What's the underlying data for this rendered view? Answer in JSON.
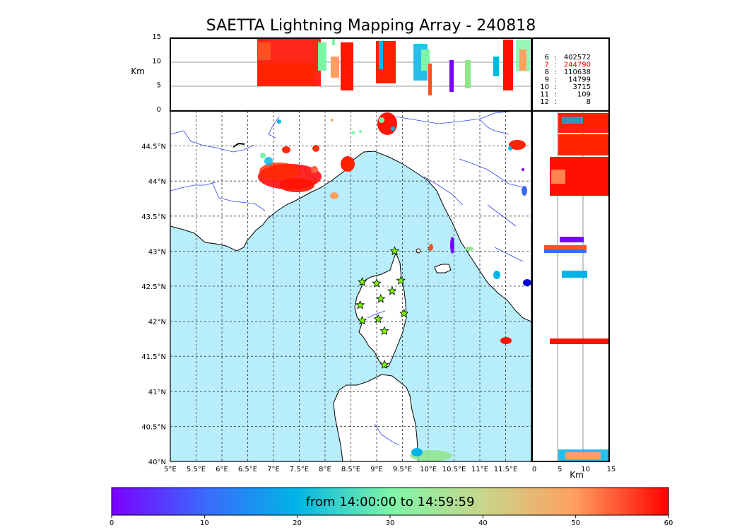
{
  "title": "SAETTA Lightning Mapping Array - 240818",
  "colorbar": {
    "label": "from 14:00:00 to 14:59:59",
    "ticks": [
      "0",
      "10",
      "20",
      "30",
      "40",
      "50",
      "60"
    ],
    "range": [
      0,
      60
    ],
    "colors": [
      "#7a00ff",
      "#3a6bfd",
      "#00b4e6",
      "#7df5a8",
      "#c8d58a",
      "#ffa060",
      "#ff0000"
    ]
  },
  "map": {
    "lon_ticks": [
      "5°E",
      "5.5°E",
      "6°E",
      "6.5°E",
      "7°E",
      "7.5°E",
      "8°E",
      "8.5°E",
      "9°E",
      "9.5°E",
      "10°E",
      "10.5°E",
      "11°E",
      "11.5°E"
    ],
    "lat_ticks": [
      "40°N",
      "40.5°N",
      "41°N",
      "41.5°N",
      "42°N",
      "42.5°N",
      "43°N",
      "43.5°N",
      "44°N",
      "44.5°N"
    ],
    "lon_range": [
      5,
      12
    ],
    "lat_range": [
      40,
      45
    ],
    "sea_color": "#b8eefb",
    "land_color": "#ffffff",
    "river_color": "#3344ee",
    "station_color": "#7fff00",
    "stations": [
      {
        "lon": 9.35,
        "lat": 43.0
      },
      {
        "lon": 8.72,
        "lat": 42.56
      },
      {
        "lon": 9.0,
        "lat": 42.54
      },
      {
        "lon": 9.47,
        "lat": 42.58
      },
      {
        "lon": 9.3,
        "lat": 42.43
      },
      {
        "lon": 9.08,
        "lat": 42.32
      },
      {
        "lon": 8.68,
        "lat": 42.23
      },
      {
        "lon": 9.53,
        "lat": 42.11
      },
      {
        "lon": 8.72,
        "lat": 42.01
      },
      {
        "lon": 9.03,
        "lat": 42.03
      },
      {
        "lon": 9.15,
        "lat": 41.86
      },
      {
        "lon": 9.15,
        "lat": 41.38
      }
    ]
  },
  "height_panel": {
    "ylabel": "Km",
    "yticks": [
      "0",
      "5",
      "10",
      "15"
    ],
    "ylim": [
      0,
      15
    ],
    "counts": [
      {
        "level": "6",
        "count": "402572",
        "color": "#000000"
      },
      {
        "level": "7",
        "count": "244790",
        "color": "#ff0000"
      },
      {
        "level": "8",
        "count": "110638",
        "color": "#000000"
      },
      {
        "level": "9",
        "count": "14799",
        "color": "#000000"
      },
      {
        "level": "10",
        "count": "3715",
        "color": "#000000"
      },
      {
        "level": "11",
        "count": "109",
        "color": "#000000"
      },
      {
        "level": "12",
        "count": "8",
        "color": "#000000"
      }
    ]
  },
  "side_panel": {
    "xlabel": "Km",
    "xticks": [
      "0",
      "5",
      "10",
      "15"
    ],
    "xlim": [
      0,
      15
    ]
  }
}
